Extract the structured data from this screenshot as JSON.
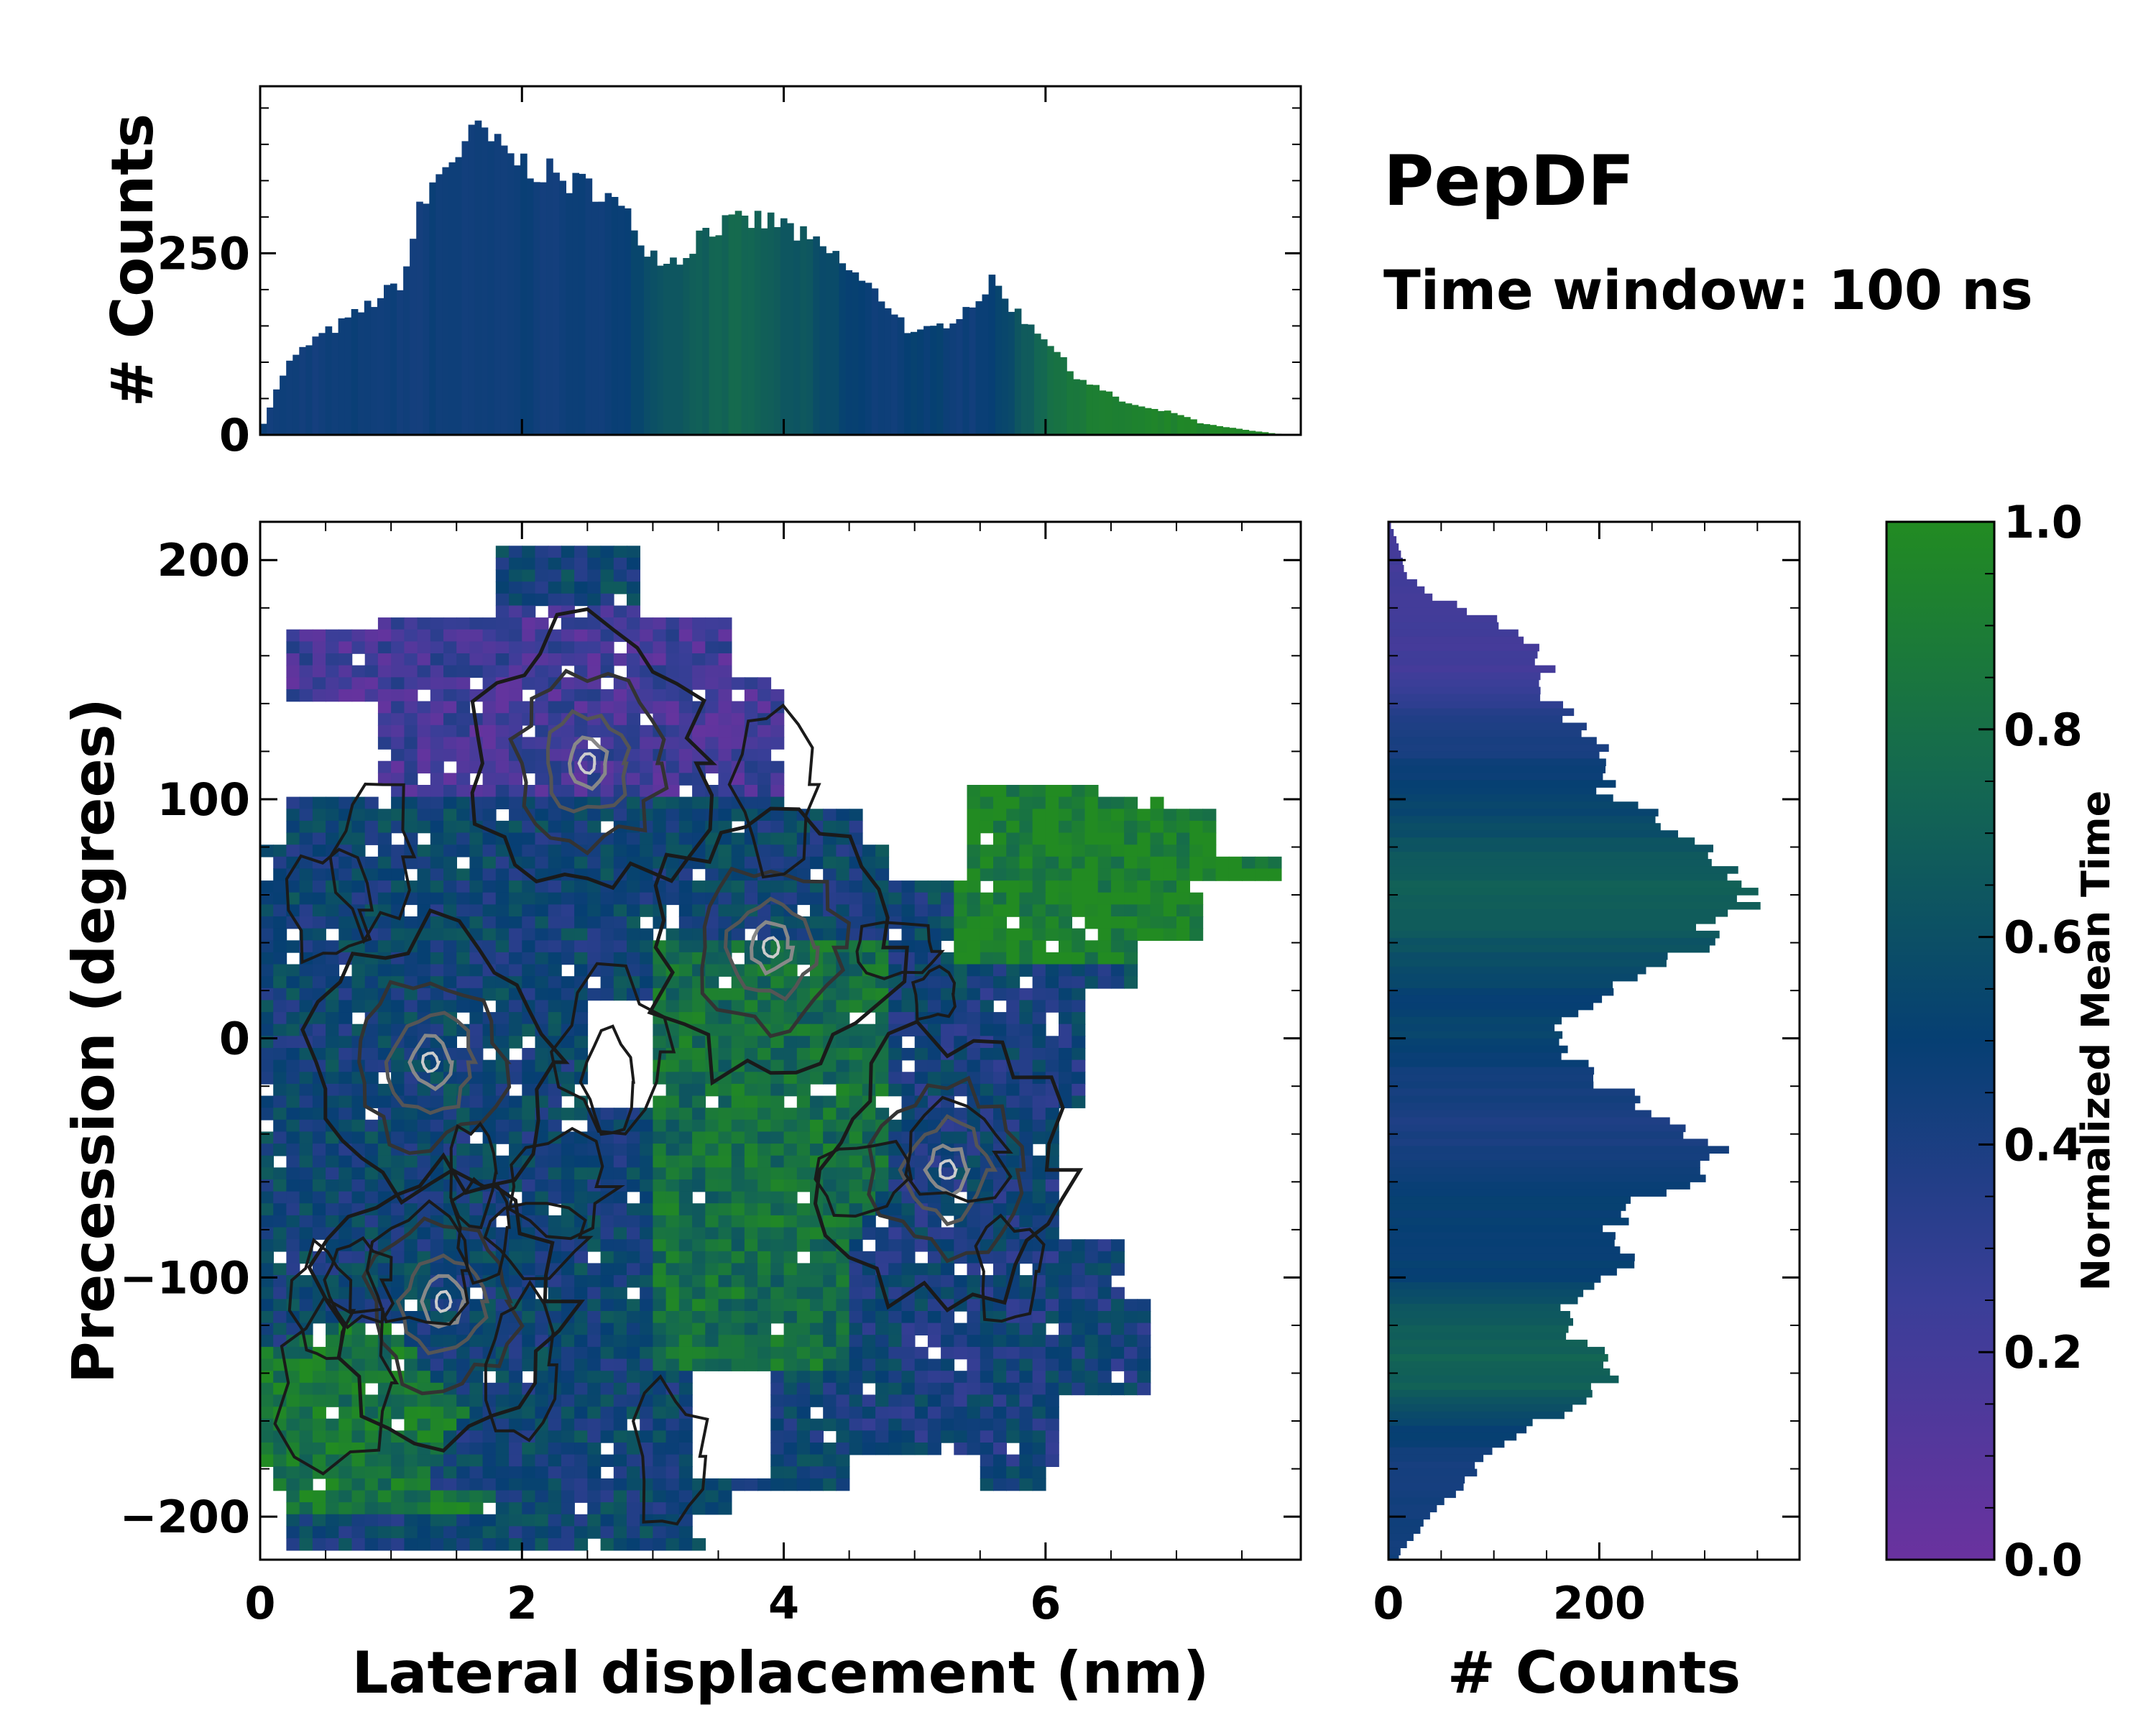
{
  "title": "PepDF",
  "subtitle": "Time window: 100 ns",
  "chart_data": [
    {
      "id": "top-histogram",
      "type": "bar",
      "ylabel": "# Counts",
      "xlim": [
        0,
        7.95
      ],
      "ylim": [
        0,
        480
      ],
      "yticks": [
        0,
        250
      ],
      "ytick_labels": [
        "0",
        "250"
      ],
      "x": [
        0.0,
        0.2,
        0.4,
        0.6,
        0.8,
        1.0,
        1.1,
        1.2,
        1.4,
        1.6,
        1.7,
        1.8,
        2.0,
        2.2,
        2.4,
        2.6,
        2.8,
        3.0,
        3.2,
        3.4,
        3.6,
        3.8,
        4.0,
        4.2,
        4.4,
        4.6,
        4.8,
        5.0,
        5.2,
        5.4,
        5.6,
        5.8,
        6.0,
        6.2,
        6.4,
        6.6,
        6.8,
        7.0,
        7.2,
        7.4,
        7.6,
        7.8
      ],
      "values": [
        5,
        95,
        130,
        150,
        175,
        200,
        215,
        300,
        370,
        405,
        420,
        395,
        375,
        360,
        345,
        340,
        300,
        250,
        240,
        285,
        290,
        295,
        290,
        265,
        245,
        210,
        180,
        135,
        150,
        175,
        210,
        165,
        135,
        85,
        65,
        45,
        35,
        30,
        15,
        10,
        5,
        1
      ],
      "color_values": [
        0.45,
        0.45,
        0.45,
        0.45,
        0.47,
        0.45,
        0.45,
        0.45,
        0.47,
        0.45,
        0.45,
        0.45,
        0.47,
        0.45,
        0.45,
        0.47,
        0.5,
        0.58,
        0.65,
        0.7,
        0.75,
        0.72,
        0.65,
        0.62,
        0.55,
        0.5,
        0.45,
        0.5,
        0.5,
        0.45,
        0.5,
        0.62,
        0.78,
        0.88,
        0.9,
        0.92,
        0.93,
        0.95,
        0.96,
        0.97,
        0.98,
        0.98
      ]
    },
    {
      "id": "right-histogram",
      "type": "bar",
      "orientation": "horizontal",
      "xlabel": "# Counts",
      "xlim": [
        0,
        390
      ],
      "xticks": [
        0,
        200
      ],
      "xtick_labels": [
        "0",
        "200"
      ],
      "y": [
        215,
        205,
        195,
        185,
        175,
        165,
        155,
        145,
        135,
        125,
        115,
        105,
        95,
        85,
        75,
        65,
        55,
        45,
        35,
        25,
        15,
        5,
        -5,
        -15,
        -25,
        -35,
        -45,
        -55,
        -65,
        -75,
        -85,
        -95,
        -105,
        -115,
        -125,
        -135,
        -145,
        -155,
        -165,
        -175,
        -185,
        -195,
        -205,
        -215
      ],
      "values": [
        2,
        10,
        15,
        40,
        100,
        140,
        150,
        140,
        170,
        200,
        220,
        200,
        250,
        290,
        310,
        320,
        345,
        300,
        280,
        230,
        190,
        160,
        170,
        190,
        230,
        270,
        310,
        320,
        250,
        220,
        200,
        230,
        190,
        170,
        180,
        220,
        200,
        170,
        120,
        90,
        75,
        50,
        30,
        10
      ],
      "color_values": [
        0.2,
        0.2,
        0.2,
        0.2,
        0.2,
        0.2,
        0.2,
        0.25,
        0.35,
        0.4,
        0.45,
        0.5,
        0.55,
        0.6,
        0.65,
        0.7,
        0.7,
        0.65,
        0.6,
        0.55,
        0.5,
        0.55,
        0.5,
        0.45,
        0.42,
        0.4,
        0.42,
        0.45,
        0.5,
        0.5,
        0.48,
        0.5,
        0.55,
        0.65,
        0.7,
        0.72,
        0.7,
        0.6,
        0.5,
        0.45,
        0.42,
        0.45,
        0.45,
        0.45
      ]
    },
    {
      "id": "main-heatmap",
      "type": "heatmap",
      "xlabel": "Lateral displacement (nm)",
      "ylabel": "Precession (degrees)",
      "xlim": [
        0,
        7.95
      ],
      "ylim": [
        -218,
        216
      ],
      "xticks": [
        0,
        2,
        4,
        6
      ],
      "xtick_labels": [
        "0",
        "2",
        "4",
        "6"
      ],
      "yticks": [
        200,
        100,
        0,
        -100,
        -200
      ],
      "ytick_labels": [
        "200",
        "100",
        "0",
        "−100",
        "−200"
      ],
      "x_step": 0.1,
      "y_step": 5,
      "regions": [
        {
          "name": "upper-lobe",
          "x": [
            0.2,
            4.0
          ],
          "y": [
            100,
            180
          ],
          "value": 0.2
        },
        {
          "name": "right-green-patch",
          "x": [
            5.3,
            7.9
          ],
          "y": [
            30,
            115
          ],
          "value": 0.95
        },
        {
          "name": "center-green",
          "x": [
            3.0,
            4.8
          ],
          "y": [
            -140,
            40
          ],
          "value": 0.8
        },
        {
          "name": "lower-left-green",
          "x": [
            0.0,
            1.8
          ],
          "y": [
            -200,
            -110
          ],
          "value": 0.85
        },
        {
          "name": "right-blue",
          "x": [
            4.5,
            7.0
          ],
          "y": [
            -210,
            20
          ],
          "value": 0.45
        },
        {
          "name": "left-mixed",
          "x": [
            0.0,
            3.0
          ],
          "y": [
            -190,
            90
          ],
          "value": 0.5
        }
      ],
      "contour_peaks": [
        {
          "x": 2.5,
          "y": 115
        },
        {
          "x": 3.9,
          "y": 38
        },
        {
          "x": 5.25,
          "y": -55
        },
        {
          "x": 1.3,
          "y": -10
        },
        {
          "x": 1.4,
          "y": -110
        }
      ],
      "holes": [
        {
          "x": 2.75,
          "y": -5
        },
        {
          "x": 3.6,
          "y": -160
        },
        {
          "x": 5.1,
          "y": 90
        }
      ]
    },
    {
      "id": "colorbar",
      "type": "colorbar",
      "label": "Normalized Mean Time",
      "range": [
        0.0,
        1.0
      ],
      "ticks": [
        0.0,
        0.2,
        0.4,
        0.6,
        0.8,
        1.0
      ],
      "tick_labels": [
        "0.0",
        "0.2",
        "0.4",
        "0.6",
        "0.8",
        "1.0"
      ],
      "colormap": [
        {
          "v": 0.0,
          "color": "#6a329f"
        },
        {
          "v": 0.25,
          "color": "#3a3e98"
        },
        {
          "v": 0.5,
          "color": "#063f73"
        },
        {
          "v": 0.75,
          "color": "#146851"
        },
        {
          "v": 1.0,
          "color": "#228b22"
        }
      ]
    }
  ]
}
